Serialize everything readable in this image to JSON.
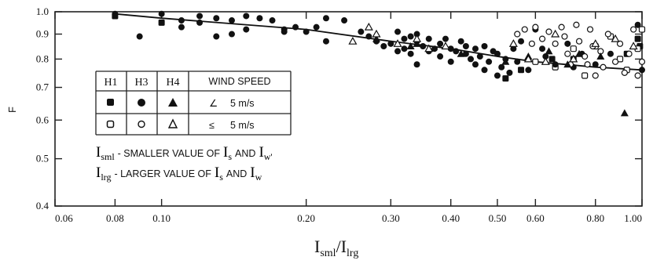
{
  "chart_data": {
    "type": "scatter",
    "ylabel": "F",
    "x_axis_label": {
      "main": "I",
      "sub_num": "sml",
      "slash": "/",
      "main2": "I",
      "sub_den": "lrg"
    },
    "xscale": "log",
    "yscale": "log",
    "xlim": [
      0.06,
      1.0
    ],
    "ylim": [
      0.4,
      1.0
    ],
    "x_ticks": [
      0.06,
      0.08,
      0.1,
      0.2,
      0.3,
      0.4,
      0.5,
      0.6,
      0.8,
      1.0
    ],
    "x_tick_labels": [
      "0.06",
      "0.08",
      "0.10",
      "0.20",
      "0.30",
      "0.40",
      "0.50",
      "0.60",
      "0.80",
      "1.00"
    ],
    "y_ticks": [
      0.4,
      0.5,
      0.6,
      0.7,
      0.8,
      0.9,
      1.0
    ],
    "y_tick_labels": [
      "0.4",
      "0.5",
      "0.6",
      "0.7",
      "0.8",
      "0.9",
      "1.0"
    ],
    "grid": false,
    "fit_line": {
      "x": [
        0.08,
        0.1,
        0.2,
        0.3,
        0.4,
        0.5,
        0.6,
        0.8,
        1.0
      ],
      "y": [
        0.99,
        0.97,
        0.92,
        0.87,
        0.84,
        0.81,
        0.79,
        0.77,
        0.76
      ]
    },
    "legend": {
      "headers": [
        "H1",
        "H3",
        "H4",
        "WIND SPEED"
      ],
      "rows": [
        {
          "symbols": [
            "filled-square",
            "filled-circle",
            "filled-triangle"
          ],
          "speed_symbol": "∠",
          "speed": "5 m/s"
        },
        {
          "symbols": [
            "open-square",
            "open-circle",
            "open-triangle"
          ],
          "speed_symbol": "≤",
          "speed": "5 m/s"
        }
      ]
    },
    "notes": [
      {
        "sym": "I",
        "sub": "sml",
        "text": "- SMALLER VALUE OF",
        "a": "I",
        "a_sub": "s",
        "and": "AND",
        "b": "I",
        "b_sub": "w'"
      },
      {
        "sym": "I",
        "sub": "lrg",
        "text": "- LARGER VALUE OF",
        "a": "I",
        "a_sub": "s",
        "and": "AND",
        "b": "I",
        "b_sub": "w"
      }
    ],
    "series": [
      {
        "name": "H1",
        "marker": "filled-square",
        "points": [
          [
            0.08,
            0.98
          ],
          [
            0.1,
            0.95
          ],
          [
            0.52,
            0.73
          ],
          [
            0.56,
            0.76
          ],
          [
            0.65,
            0.8
          ],
          [
            0.72,
            0.8
          ],
          [
            0.93,
            0.82
          ],
          [
            0.98,
            0.88
          ],
          [
            0.99,
            0.85
          ]
        ]
      },
      {
        "name": "H1",
        "marker": "open-square",
        "points": [
          [
            0.6,
            0.79
          ],
          [
            0.66,
            0.77
          ],
          [
            0.72,
            0.84
          ],
          [
            0.76,
            0.74
          ],
          [
            0.8,
            0.85
          ],
          [
            0.86,
            0.89
          ],
          [
            0.9,
            0.8
          ],
          [
            0.93,
            0.76
          ],
          [
            0.98,
            0.84
          ],
          [
            1.0,
            0.92
          ]
        ]
      },
      {
        "name": "H3",
        "marker": "filled-circle",
        "points": [
          [
            0.08,
            0.99
          ],
          [
            0.09,
            0.89
          ],
          [
            0.1,
            0.99
          ],
          [
            0.11,
            0.96
          ],
          [
            0.11,
            0.93
          ],
          [
            0.12,
            0.95
          ],
          [
            0.12,
            0.98
          ],
          [
            0.13,
            0.97
          ],
          [
            0.13,
            0.89
          ],
          [
            0.14,
            0.96
          ],
          [
            0.14,
            0.9
          ],
          [
            0.15,
            0.98
          ],
          [
            0.15,
            0.92
          ],
          [
            0.16,
            0.97
          ],
          [
            0.17,
            0.96
          ],
          [
            0.18,
            0.92
          ],
          [
            0.18,
            0.91
          ],
          [
            0.19,
            0.93
          ],
          [
            0.2,
            0.91
          ],
          [
            0.21,
            0.93
          ],
          [
            0.22,
            0.87
          ],
          [
            0.22,
            0.97
          ],
          [
            0.24,
            0.96
          ],
          [
            0.26,
            0.91
          ],
          [
            0.27,
            0.89
          ],
          [
            0.28,
            0.87
          ],
          [
            0.29,
            0.85
          ],
          [
            0.3,
            0.86
          ],
          [
            0.31,
            0.83
          ],
          [
            0.31,
            0.91
          ],
          [
            0.32,
            0.84
          ],
          [
            0.32,
            0.88
          ],
          [
            0.33,
            0.89
          ],
          [
            0.33,
            0.82
          ],
          [
            0.34,
            0.9
          ],
          [
            0.34,
            0.87
          ],
          [
            0.34,
            0.78
          ],
          [
            0.35,
            0.85
          ],
          [
            0.36,
            0.88
          ],
          [
            0.36,
            0.83
          ],
          [
            0.37,
            0.84
          ],
          [
            0.38,
            0.81
          ],
          [
            0.38,
            0.86
          ],
          [
            0.39,
            0.88
          ],
          [
            0.4,
            0.84
          ],
          [
            0.4,
            0.79
          ],
          [
            0.41,
            0.83
          ],
          [
            0.42,
            0.87
          ],
          [
            0.43,
            0.82
          ],
          [
            0.43,
            0.85
          ],
          [
            0.44,
            0.8
          ],
          [
            0.45,
            0.84
          ],
          [
            0.45,
            0.78
          ],
          [
            0.46,
            0.81
          ],
          [
            0.47,
            0.85
          ],
          [
            0.47,
            0.76
          ],
          [
            0.48,
            0.79
          ],
          [
            0.49,
            0.83
          ],
          [
            0.5,
            0.74
          ],
          [
            0.5,
            0.82
          ],
          [
            0.51,
            0.77
          ],
          [
            0.52,
            0.8
          ],
          [
            0.53,
            0.75
          ],
          [
            0.54,
            0.84
          ],
          [
            0.55,
            0.79
          ],
          [
            0.56,
            0.87
          ],
          [
            0.58,
            0.76
          ],
          [
            0.6,
            0.92
          ],
          [
            0.62,
            0.84
          ],
          [
            0.63,
            0.81
          ],
          [
            0.66,
            0.78
          ],
          [
            0.7,
            0.86
          ],
          [
            0.72,
            0.77
          ],
          [
            0.75,
            0.82
          ],
          [
            0.8,
            0.78
          ],
          [
            0.86,
            0.82
          ],
          [
            0.98,
            0.94
          ],
          [
            1.0,
            0.76
          ]
        ]
      },
      {
        "name": "H3",
        "marker": "open-circle",
        "points": [
          [
            0.55,
            0.9
          ],
          [
            0.57,
            0.92
          ],
          [
            0.59,
            0.86
          ],
          [
            0.6,
            0.93
          ],
          [
            0.62,
            0.88
          ],
          [
            0.64,
            0.91
          ],
          [
            0.66,
            0.86
          ],
          [
            0.68,
            0.93
          ],
          [
            0.69,
            0.89
          ],
          [
            0.7,
            0.82
          ],
          [
            0.71,
            0.78
          ],
          [
            0.73,
            0.94
          ],
          [
            0.74,
            0.87
          ],
          [
            0.76,
            0.81
          ],
          [
            0.77,
            0.78
          ],
          [
            0.78,
            0.92
          ],
          [
            0.79,
            0.85
          ],
          [
            0.8,
            0.74
          ],
          [
            0.82,
            0.83
          ],
          [
            0.83,
            0.77
          ],
          [
            0.85,
            0.9
          ],
          [
            0.88,
            0.79
          ],
          [
            0.9,
            0.86
          ],
          [
            0.92,
            0.75
          ],
          [
            0.94,
            0.82
          ],
          [
            0.96,
            0.92
          ],
          [
            0.98,
            0.74
          ],
          [
            1.0,
            0.79
          ]
        ]
      },
      {
        "name": "H4",
        "marker": "filled-triangle",
        "points": [
          [
            0.28,
            0.88
          ],
          [
            0.33,
            0.85
          ],
          [
            0.34,
            0.86
          ],
          [
            0.42,
            0.82
          ],
          [
            0.52,
            0.79
          ],
          [
            0.58,
            0.81
          ],
          [
            0.64,
            0.83
          ],
          [
            0.7,
            0.78
          ],
          [
            0.74,
            0.82
          ],
          [
            0.82,
            0.81
          ],
          [
            0.92,
            0.62
          ]
        ]
      },
      {
        "name": "H4",
        "marker": "open-triangle",
        "points": [
          [
            0.25,
            0.87
          ],
          [
            0.27,
            0.93
          ],
          [
            0.28,
            0.9
          ],
          [
            0.31,
            0.86
          ],
          [
            0.34,
            0.88
          ],
          [
            0.36,
            0.84
          ],
          [
            0.39,
            0.85
          ],
          [
            0.54,
            0.86
          ],
          [
            0.58,
            0.8
          ],
          [
            0.63,
            0.79
          ],
          [
            0.66,
            0.9
          ],
          [
            0.72,
            0.8
          ],
          [
            0.8,
            0.86
          ],
          [
            0.88,
            0.88
          ],
          [
            0.96,
            0.85
          ]
        ]
      }
    ]
  }
}
